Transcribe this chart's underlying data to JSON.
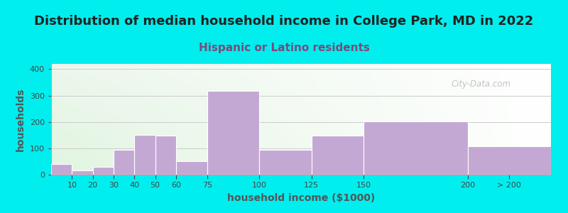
{
  "title": "Distribution of median household income in College Park, MD in 2022",
  "subtitle": "Hispanic or Latino residents",
  "xlabel": "household income ($1000)",
  "ylabel": "households",
  "background_color": "#00EEEE",
  "bar_color": "#C4A8D4",
  "categories": [
    "10",
    "20",
    "30",
    "40",
    "50",
    "60",
    "75",
    "100",
    "125",
    "150",
    "200",
    "> 200"
  ],
  "values": [
    40,
    15,
    30,
    95,
    152,
    148,
    52,
    318,
    95,
    148,
    203,
    108
  ],
  "bar_lefts": [
    0,
    10,
    20,
    30,
    40,
    50,
    60,
    75,
    100,
    125,
    150,
    200
  ],
  "bar_rights": [
    10,
    20,
    30,
    40,
    50,
    60,
    75,
    100,
    125,
    150,
    200,
    240
  ],
  "tick_positions": [
    10,
    20,
    30,
    40,
    50,
    60,
    75,
    100,
    125,
    150,
    200,
    220
  ],
  "ylim": [
    0,
    420
  ],
  "yticks": [
    0,
    100,
    200,
    300,
    400
  ],
  "title_fontsize": 13,
  "subtitle_fontsize": 11,
  "subtitle_color": "#7B4A7B",
  "axis_label_fontsize": 10,
  "watermark_text": "City-Data.com",
  "grid_color": "#cccccc",
  "title_color": "#222222"
}
